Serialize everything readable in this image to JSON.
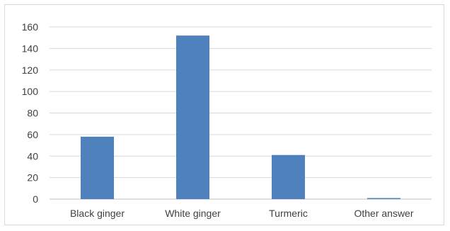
{
  "chart_data": {
    "type": "bar",
    "categories": [
      "Black ginger",
      "White ginger",
      "Turmeric",
      "Other answer"
    ],
    "values": [
      58,
      152,
      41,
      1
    ],
    "ylim": [
      0,
      160
    ],
    "yticks": [
      "0",
      "20",
      "40",
      "60",
      "80",
      "100",
      "120",
      "140",
      "160"
    ],
    "grid": true,
    "legend": "none",
    "bar_color": "#4f81bd"
  }
}
